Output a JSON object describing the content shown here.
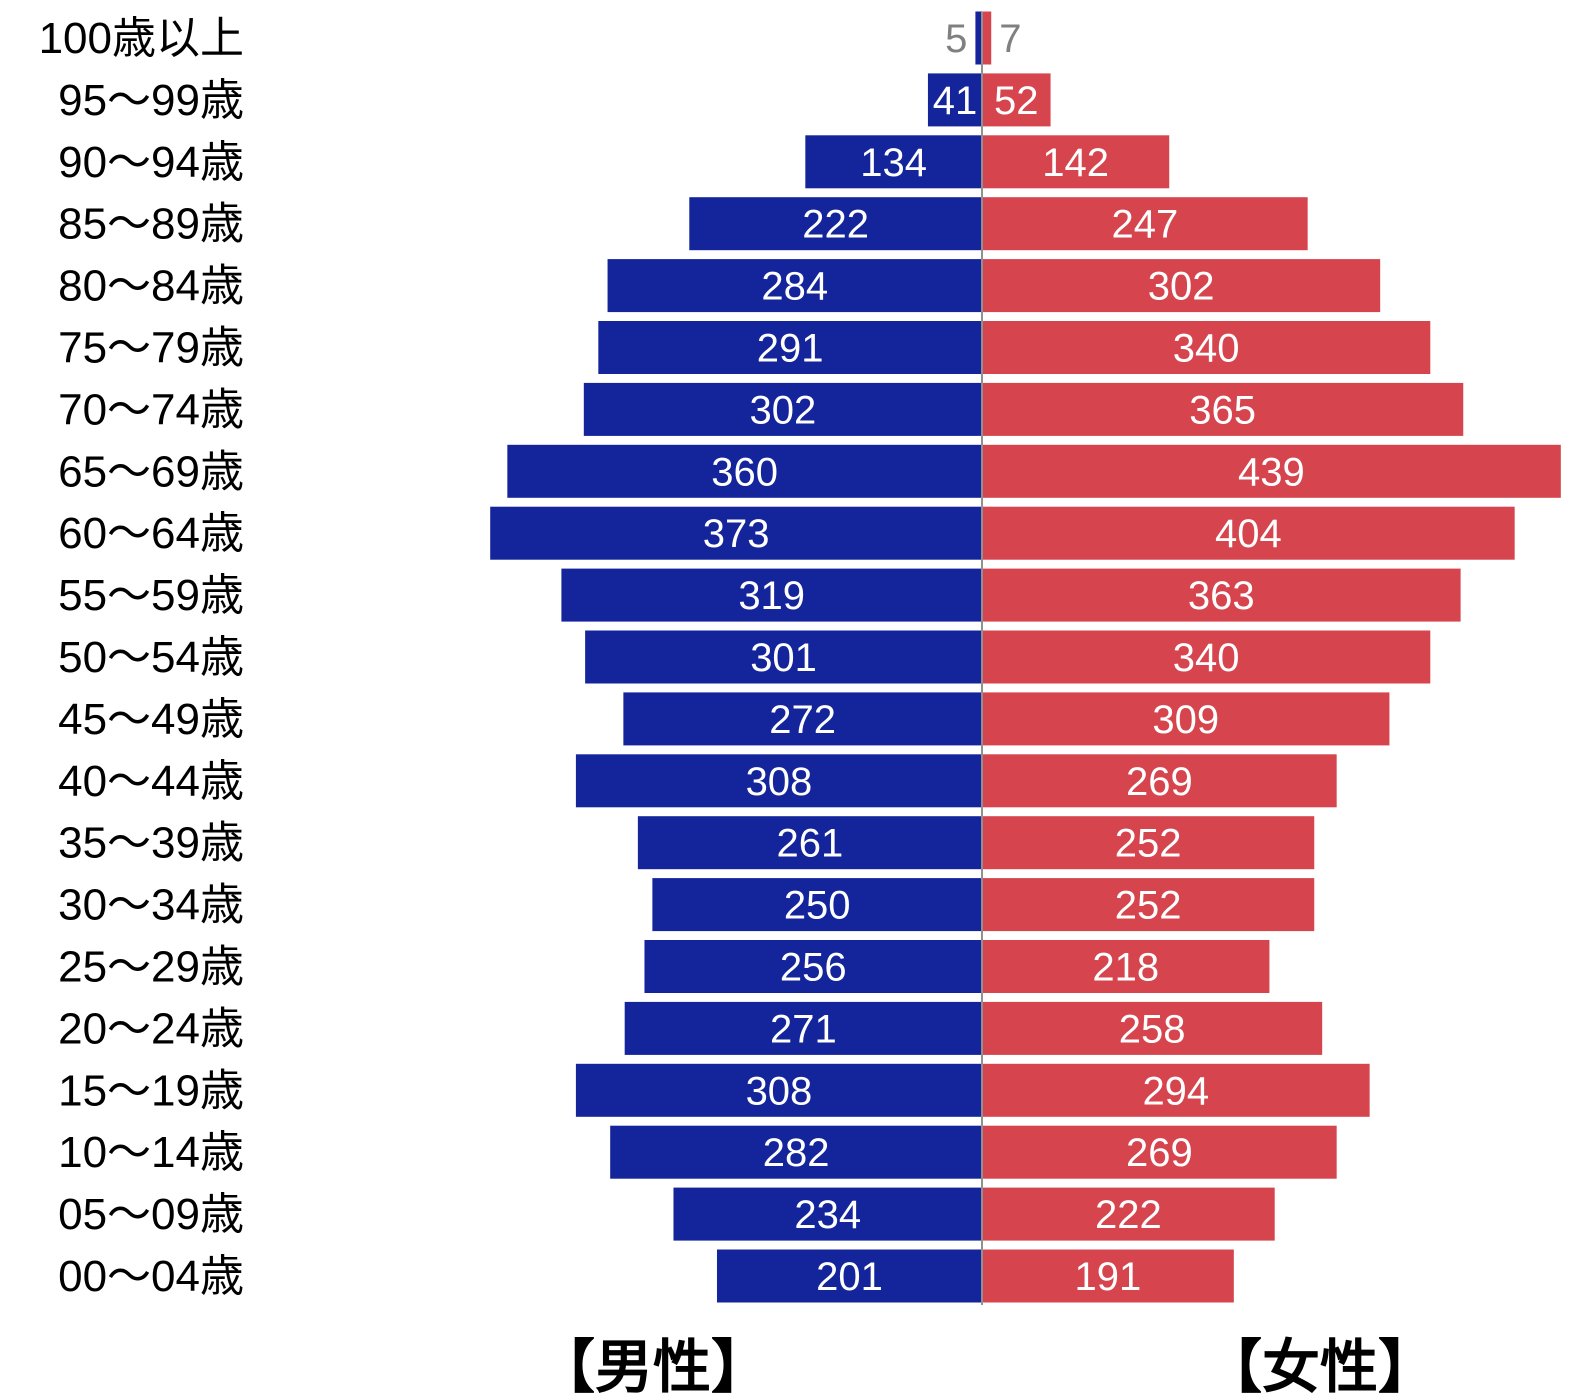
{
  "chart_data": {
    "type": "bar",
    "orientation": "horizontal-diverging",
    "categories": [
      "100歳以上",
      "95〜99歳",
      "90〜94歳",
      "85〜89歳",
      "80〜84歳",
      "75〜79歳",
      "70〜74歳",
      "65〜69歳",
      "60〜64歳",
      "55〜59歳",
      "50〜54歳",
      "45〜49歳",
      "40〜44歳",
      "35〜39歳",
      "30〜34歳",
      "25〜29歳",
      "20〜24歳",
      "15〜19歳",
      "10〜14歳",
      "05〜09歳",
      "00〜04歳"
    ],
    "series": [
      {
        "name": "【男性】",
        "color": "#14259c",
        "values": [
          5,
          41,
          134,
          222,
          284,
          291,
          302,
          360,
          373,
          319,
          301,
          272,
          308,
          261,
          250,
          256,
          271,
          308,
          282,
          234,
          201
        ]
      },
      {
        "name": "【女性】",
        "color": "#d6454e",
        "values": [
          7,
          52,
          142,
          247,
          302,
          340,
          365,
          439,
          404,
          363,
          340,
          309,
          269,
          252,
          252,
          218,
          258,
          294,
          269,
          222,
          191
        ]
      }
    ],
    "data_labels": true,
    "grid": false,
    "legend": "none"
  }
}
